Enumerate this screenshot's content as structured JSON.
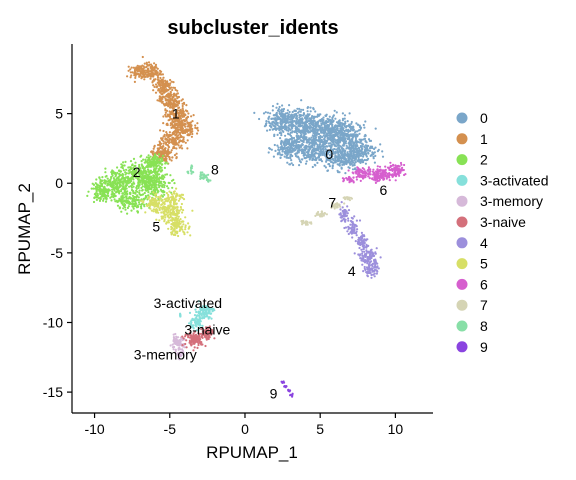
{
  "chart_data": {
    "type": "scatter",
    "title": "subcluster_idents",
    "xlabel": "RPUMAP_1",
    "ylabel": "RPUMAP_2",
    "xlim": [
      -11.5,
      12.5
    ],
    "ylim": [
      -16.5,
      10.0
    ],
    "xticks": [
      -10,
      -5,
      0,
      5,
      10
    ],
    "yticks": [
      -15,
      -10,
      -5,
      0,
      5
    ],
    "grid": false,
    "legend_position": "right",
    "series": [
      {
        "name": "0",
        "color": "#7aa6c9",
        "centroid": [
          5.0,
          2.5
        ]
      },
      {
        "name": "1",
        "color": "#d4904f",
        "centroid": [
          -5.0,
          5.0
        ]
      },
      {
        "name": "2",
        "color": "#88e255",
        "centroid": [
          -7.5,
          0.0
        ]
      },
      {
        "name": "3-activated",
        "color": "#86e0db",
        "centroid": [
          -3.0,
          -9.7
        ]
      },
      {
        "name": "3-memory",
        "color": "#d6b9d9",
        "centroid": [
          -4.5,
          -11.8
        ]
      },
      {
        "name": "3-naive",
        "color": "#d4707b",
        "centroid": [
          -3.0,
          -11.3
        ]
      },
      {
        "name": "4",
        "color": "#9c8fdc",
        "centroid": [
          8.2,
          -4.0
        ]
      },
      {
        "name": "5",
        "color": "#d7df66",
        "centroid": [
          -5.0,
          -2.3
        ]
      },
      {
        "name": "6",
        "color": "#d65fce",
        "centroid": [
          9.0,
          0.4
        ]
      },
      {
        "name": "7",
        "color": "#d5d4b4",
        "centroid": [
          6.5,
          -1.5
        ]
      },
      {
        "name": "8",
        "color": "#88dfa7",
        "centroid": [
          -3.0,
          0.7
        ]
      },
      {
        "name": "9",
        "color": "#8a44e0",
        "centroid": [
          2.7,
          -14.6
        ]
      }
    ],
    "annotations": [
      {
        "text": "0",
        "x": 5.6,
        "y": 2.1
      },
      {
        "text": "1",
        "x": -4.6,
        "y": 5.0
      },
      {
        "text": "2",
        "x": -7.2,
        "y": 0.8
      },
      {
        "text": "3-activated",
        "x": -3.8,
        "y": -8.6
      },
      {
        "text": "3-memory",
        "x": -5.3,
        "y": -12.3
      },
      {
        "text": "3-naive",
        "x": -2.5,
        "y": -10.5
      },
      {
        "text": "4",
        "x": 7.1,
        "y": -6.3
      },
      {
        "text": "5",
        "x": -5.9,
        "y": -3.1
      },
      {
        "text": "6",
        "x": 9.2,
        "y": -0.5
      },
      {
        "text": "7",
        "x": 5.8,
        "y": -1.4
      },
      {
        "text": "8",
        "x": -2.0,
        "y": 1.0
      },
      {
        "text": "9",
        "x": 1.9,
        "y": -15.1
      }
    ]
  }
}
